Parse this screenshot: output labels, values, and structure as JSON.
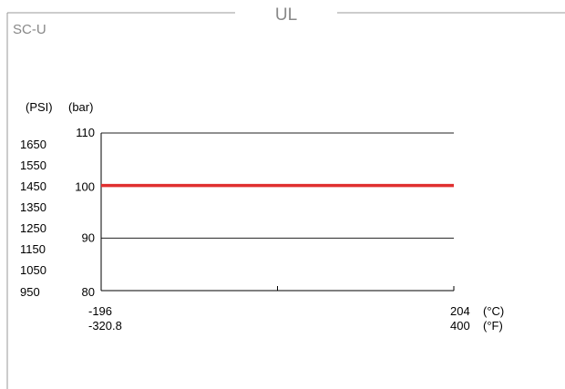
{
  "panel": {
    "header": "UL",
    "label": "SC-U"
  },
  "chart_data": {
    "type": "line",
    "title": "",
    "y_units": {
      "psi": "(PSI)",
      "bar": "(bar)"
    },
    "y_bar_ticks": [
      "110",
      "100",
      "90",
      "80"
    ],
    "y_psi_ticks": [
      "1650",
      "1550",
      "1450",
      "1350",
      "1250",
      "1150",
      "1050",
      "950"
    ],
    "x_units": {
      "celsius": "(°C)",
      "fahrenheit": "(°F)"
    },
    "x_celsius_ticks": [
      "-196",
      "204"
    ],
    "x_fahrenheit_ticks": [
      "-320.8",
      "400"
    ],
    "x_range_celsius": [
      -196,
      204
    ],
    "y_range_bar": [
      80,
      110
    ],
    "grid": true,
    "series": [
      {
        "color": "#e03030",
        "x": [
          -196,
          204
        ],
        "y": [
          100,
          100
        ]
      }
    ]
  },
  "colors": {
    "frame": "#999999",
    "axis": "#000000",
    "grid": "#222222",
    "panel_text": "#888888",
    "series": "#e03030"
  }
}
